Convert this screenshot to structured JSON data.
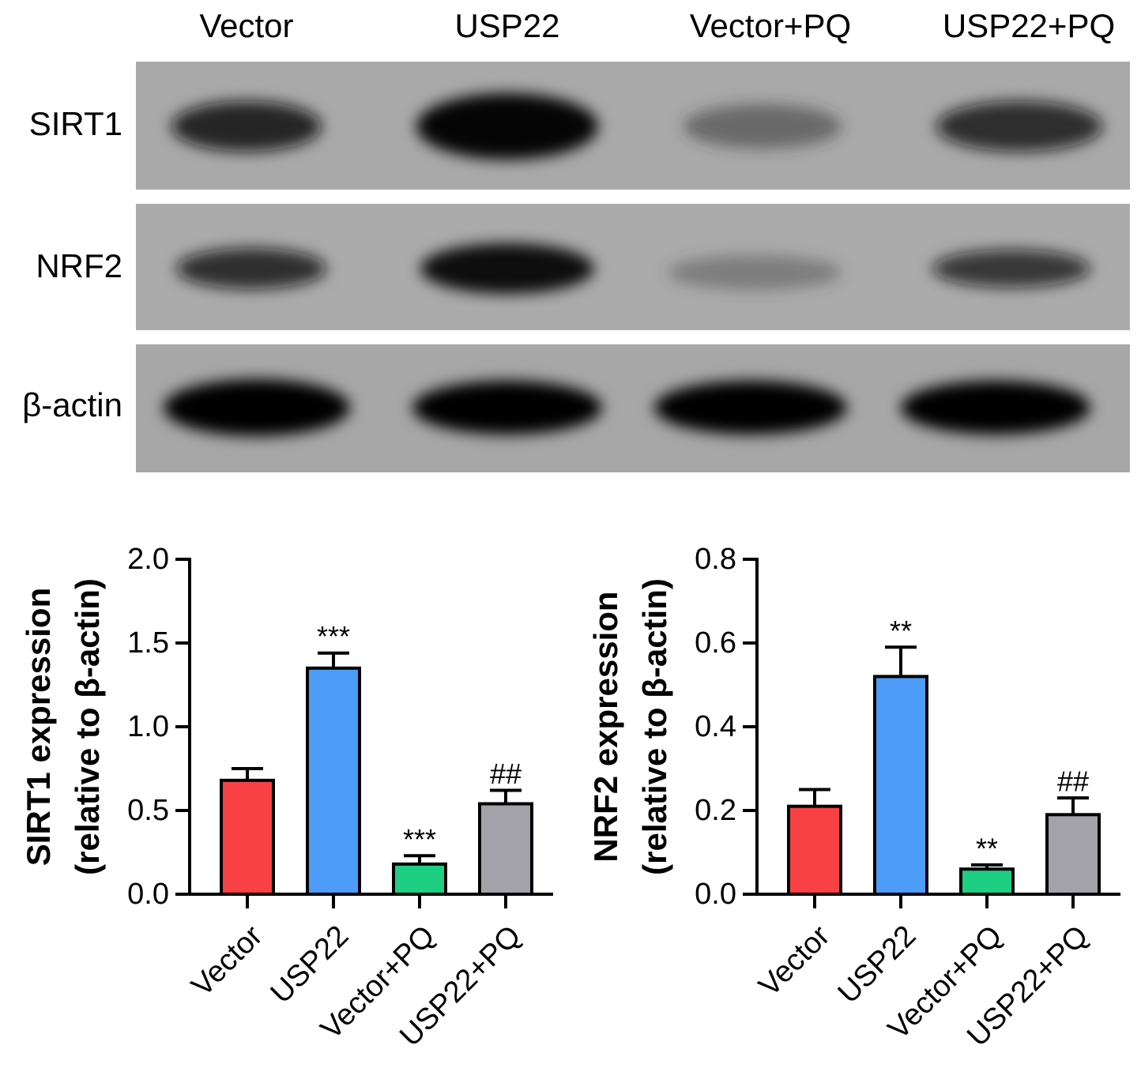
{
  "blot": {
    "lanes": [
      "Vector",
      "USP22",
      "Vector+PQ",
      "USP22+PQ"
    ],
    "rows": [
      "SIRT1",
      "NRF2",
      "β-actin"
    ]
  },
  "chart_data": [
    {
      "type": "bar",
      "ylabel": [
        "SIRT1 expression",
        "(relative to β-actin)"
      ],
      "categories": [
        "Vector",
        "USP22",
        "Vector+PQ",
        "USP22+PQ"
      ],
      "values": [
        0.68,
        1.35,
        0.18,
        0.54
      ],
      "errors": [
        0.07,
        0.09,
        0.05,
        0.08
      ],
      "annotations": [
        null,
        "***",
        "***",
        "##"
      ],
      "colors": [
        "#f84144",
        "#4d9cf8",
        "#1ecf83",
        "#a2a2a8"
      ],
      "ylim": [
        0,
        2
      ],
      "yticks": [
        {
          "value": 0,
          "label": "0.0"
        },
        0.5,
        {
          "value": 1,
          "label": "1.0"
        },
        1.5,
        {
          "value": 2,
          "label": "2.0"
        }
      ]
    },
    {
      "type": "bar",
      "ylabel": [
        "NRF2 expression",
        "(relative to β-actin)"
      ],
      "categories": [
        "Vector",
        "USP22",
        "Vector+PQ",
        "USP22+PQ"
      ],
      "values": [
        0.21,
        0.52,
        0.06,
        0.19
      ],
      "errors": [
        0.04,
        0.07,
        0.01,
        0.04
      ],
      "annotations": [
        null,
        "**",
        "**",
        "##"
      ],
      "colors": [
        "#f84144",
        "#4d9cf8",
        "#1ecf83",
        "#a2a2a8"
      ],
      "ylim": [
        0,
        0.8
      ],
      "yticks": [
        {
          "value": 0,
          "label": "0.0"
        },
        0.2,
        0.4,
        0.6,
        0.8
      ]
    }
  ]
}
